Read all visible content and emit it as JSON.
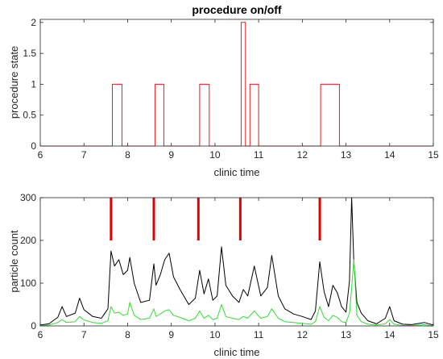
{
  "chart_data": [
    {
      "type": "line",
      "title": "procedure on/off",
      "xlabel": "clinic time",
      "ylabel": "procedure state",
      "xlim": [
        6,
        15
      ],
      "ylim": [
        0,
        2.05
      ],
      "xticks": [
        "6",
        "7",
        "8",
        "9",
        "10",
        "11",
        "12",
        "13",
        "14",
        "15"
      ],
      "yticks": [
        "0",
        "0.5",
        "1",
        "1.5",
        "2"
      ],
      "grid": false,
      "series": [
        {
          "color": "#e41a1c",
          "x": [
            6,
            7.65,
            7.65,
            7.87,
            7.87,
            8.63,
            8.63,
            8.83,
            8.83,
            9.65,
            9.65,
            9.87,
            9.87,
            10.6,
            10.6,
            10.7,
            10.7,
            10.8,
            10.8,
            11.0,
            11.0,
            12.42,
            12.42,
            12.85,
            12.85,
            15
          ],
          "y": [
            0,
            0,
            1,
            1,
            0,
            0,
            1,
            1,
            0,
            0,
            1,
            1,
            0,
            0,
            2,
            2,
            0,
            0,
            1,
            1,
            0,
            0,
            1,
            1,
            0,
            0
          ]
        }
      ]
    },
    {
      "type": "line",
      "title": "",
      "xlabel": "clinic time",
      "ylabel": "particle count",
      "xlim": [
        6,
        15
      ],
      "ylim": [
        0,
        300
      ],
      "xticks": [
        "6",
        "7",
        "8",
        "9",
        "10",
        "11",
        "12",
        "13",
        "14",
        "15"
      ],
      "yticks": [
        "0",
        "100",
        "200",
        "300"
      ],
      "grid": false,
      "markers": {
        "color": "#e00000",
        "x": [
          7.62,
          8.6,
          9.62,
          10.58,
          12.4
        ],
        "y_range": [
          200,
          300
        ]
      },
      "series": [
        {
          "color": "#000000",
          "x": [
            6.0,
            6.2,
            6.4,
            6.5,
            6.6,
            6.8,
            6.9,
            7.0,
            7.2,
            7.4,
            7.55,
            7.62,
            7.7,
            7.8,
            7.9,
            8.0,
            8.05,
            8.15,
            8.3,
            8.5,
            8.6,
            8.65,
            8.75,
            8.85,
            8.95,
            9.05,
            9.2,
            9.4,
            9.55,
            9.65,
            9.75,
            9.85,
            9.95,
            10.05,
            10.15,
            10.25,
            10.4,
            10.55,
            10.65,
            10.75,
            10.9,
            11.05,
            11.2,
            11.3,
            11.45,
            11.6,
            11.8,
            12.0,
            12.2,
            12.3,
            12.4,
            12.5,
            12.6,
            12.7,
            12.8,
            12.9,
            13.0,
            13.08,
            13.13,
            13.18,
            13.25,
            13.35,
            13.5,
            13.7,
            13.9,
            14.0,
            14.1,
            14.3,
            14.5,
            14.8,
            15.0
          ],
          "y": [
            2,
            5,
            20,
            45,
            22,
            30,
            65,
            38,
            22,
            18,
            40,
            175,
            140,
            155,
            120,
            130,
            160,
            100,
            55,
            60,
            145,
            95,
            120,
            155,
            170,
            115,
            85,
            50,
            65,
            130,
            75,
            110,
            60,
            70,
            185,
            95,
            70,
            55,
            85,
            70,
            140,
            70,
            90,
            165,
            70,
            40,
            28,
            22,
            15,
            35,
            150,
            80,
            45,
            95,
            78,
            45,
            32,
            105,
            300,
            150,
            55,
            30,
            12,
            5,
            18,
            45,
            12,
            4,
            3,
            8,
            2
          ]
        },
        {
          "color": "#33dd33",
          "x": [
            6.0,
            6.2,
            6.4,
            6.5,
            6.6,
            6.8,
            6.9,
            7.0,
            7.2,
            7.4,
            7.55,
            7.62,
            7.7,
            7.8,
            7.9,
            8.0,
            8.05,
            8.15,
            8.3,
            8.5,
            8.6,
            8.65,
            8.75,
            8.85,
            8.95,
            9.05,
            9.2,
            9.4,
            9.55,
            9.65,
            9.75,
            9.85,
            9.95,
            10.05,
            10.15,
            10.25,
            10.4,
            10.55,
            10.65,
            10.75,
            10.9,
            11.05,
            11.2,
            11.3,
            11.45,
            11.6,
            11.8,
            12.0,
            12.2,
            12.3,
            12.4,
            12.5,
            12.6,
            12.7,
            12.8,
            12.9,
            13.0,
            13.08,
            13.13,
            13.18,
            13.25,
            13.35,
            13.5,
            13.7,
            13.9,
            14.0,
            14.1,
            14.3,
            14.5,
            14.8,
            15.0
          ],
          "y": [
            0,
            2,
            8,
            15,
            8,
            10,
            22,
            14,
            8,
            6,
            12,
            45,
            30,
            32,
            25,
            28,
            55,
            25,
            15,
            18,
            40,
            22,
            28,
            35,
            38,
            25,
            20,
            12,
            18,
            35,
            18,
            25,
            15,
            18,
            50,
            22,
            18,
            15,
            22,
            18,
            35,
            18,
            22,
            40,
            18,
            10,
            8,
            6,
            4,
            10,
            45,
            20,
            12,
            25,
            20,
            10,
            8,
            30,
            90,
            155,
            25,
            10,
            4,
            2,
            5,
            15,
            4,
            1,
            1,
            3,
            0
          ]
        }
      ]
    }
  ]
}
